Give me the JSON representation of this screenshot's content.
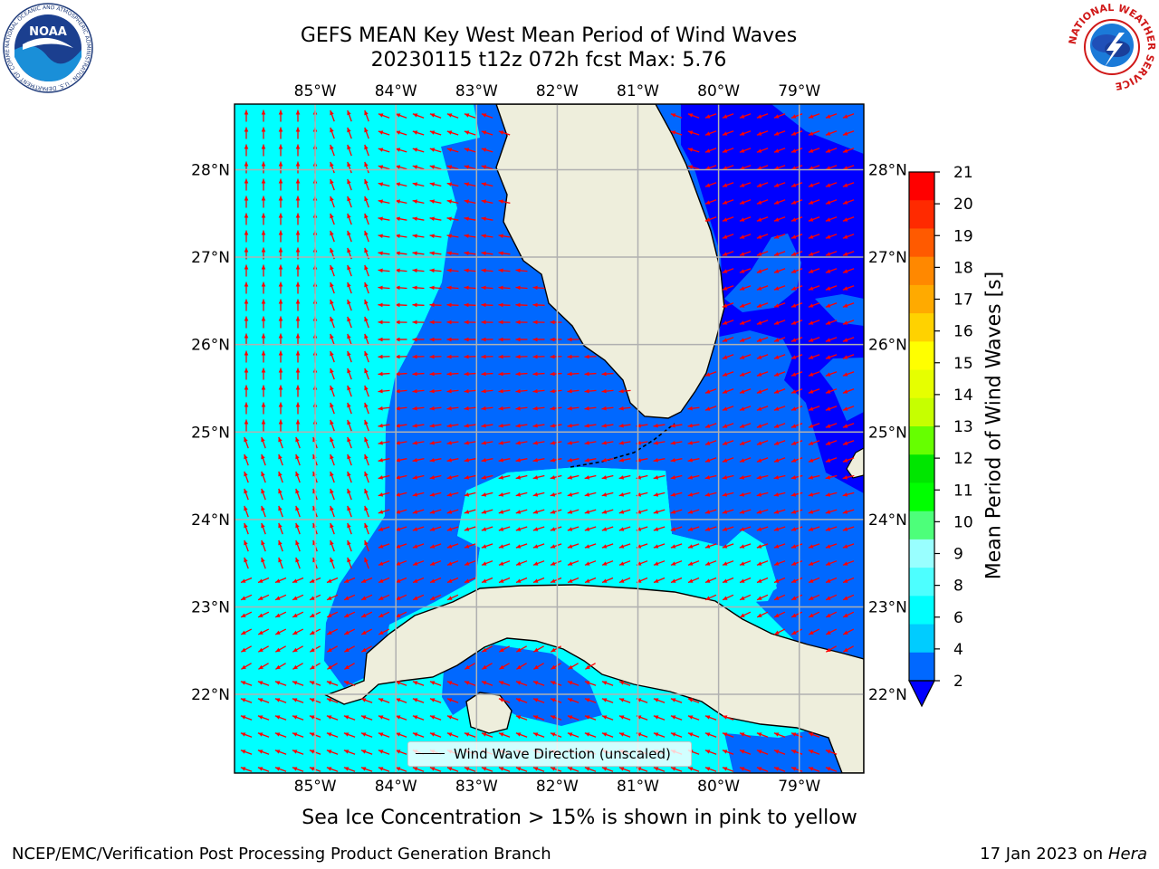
{
  "title": {
    "line1": "GEFS MEAN Key West Mean Period of Wind Waves",
    "line2": "20230115 t12z 072h fcst   Max: 5.76"
  },
  "map": {
    "lon_ticks": [
      "85°W",
      "84°W",
      "83°W",
      "82°W",
      "81°W",
      "80°W",
      "79°W"
    ],
    "lat_ticks": [
      "28°N",
      "27°N",
      "26°N",
      "25°N",
      "24°N",
      "23°N",
      "22°N"
    ],
    "lon_values": [
      -85,
      -84,
      -83,
      -82,
      -81,
      -80,
      -79
    ],
    "lat_values": [
      28,
      27,
      26,
      25,
      24,
      23,
      22
    ],
    "extent": {
      "lon": [
        -86,
        -78.2
      ],
      "lat": [
        21.1,
        28.75
      ]
    },
    "colors": {
      "land": "#eeeedc",
      "coast": "#000000",
      "grid": "#b0b0b0",
      "arrow": "#ff0000"
    }
  },
  "legend": {
    "label": "Wind Wave Direction (unscaled)"
  },
  "colorbar": {
    "label": "Mean Period of Wind Waves [s]",
    "ticks": [
      "2",
      "4",
      "6",
      "8",
      "9",
      "10",
      "11",
      "12",
      "13",
      "14",
      "15",
      "16",
      "17",
      "18",
      "19",
      "20",
      "21"
    ],
    "colors": [
      "#0068ff",
      "#00ccff",
      "#00ffff",
      "#4dffff",
      "#99ffff",
      "#4dff7a",
      "#00ff00",
      "#00e600",
      "#66ff00",
      "#c6ff00",
      "#e6ff00",
      "#ffff00",
      "#ffd200",
      "#ffaa00",
      "#ff8800",
      "#ff5a00",
      "#ff2a00",
      "#ff0000"
    ],
    "under_color": "#0000ff"
  },
  "note": "Sea Ice Concentration > 15% is shown in pink to yellow",
  "footer": {
    "left": "NCEP/EMC/Verification Post Processing Product Generation Branch",
    "right_prefix": "17 Jan 2023 on ",
    "right_host": "Hera"
  },
  "logos": {
    "noaa_text": "NOAA",
    "noaa_ring": "NATIONAL OCEANIC AND ATMOSPHERIC ADMINISTRATION · U.S. DEPARTMENT OF COMMERCE",
    "nws_ring": "NATIONAL WEATHER SERVICE"
  }
}
